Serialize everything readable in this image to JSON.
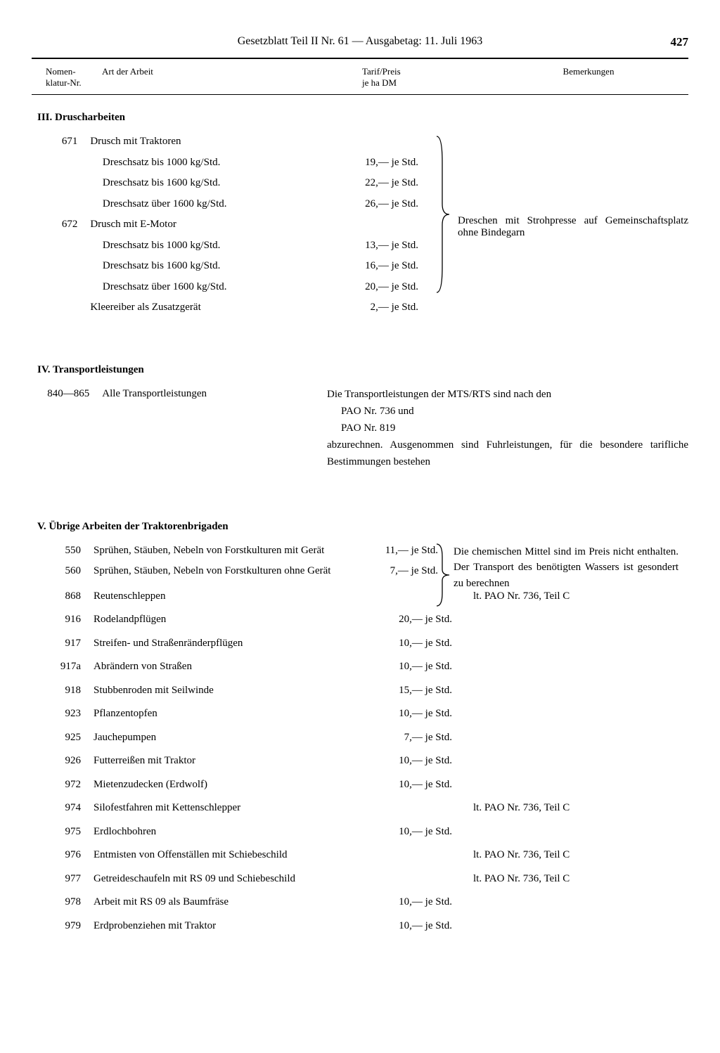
{
  "header": {
    "title_left": "Gesetzblatt Teil II Nr. 61",
    "separator": "—",
    "title_right": "Ausgabetag: 11. Juli 1963",
    "page_number": "427"
  },
  "columns": {
    "nr_line1": "Nomen-",
    "nr_line2": "klatur-Nr.",
    "art": "Art der Arbeit",
    "tarif_line1": "Tarif/Preis",
    "tarif_line2": "je ha DM",
    "bem": "Bemerkungen"
  },
  "section3": {
    "title": "III. Druscharbeiten",
    "item_671_nr": "671",
    "item_671_art": "Drusch mit Traktoren",
    "item_671_sub": [
      {
        "art": "Dreschsatz   bis 1000 kg/Std.",
        "tarif": "19,— je Std."
      },
      {
        "art": "Dreschsatz   bis 1600 kg/Std.",
        "tarif": "22,— je Std."
      },
      {
        "art": "Dreschsatz über 1600 kg/Std.",
        "tarif": "26,— je Std."
      }
    ],
    "item_672_nr": "672",
    "item_672_art": "Drusch mit E-Motor",
    "item_672_sub": [
      {
        "art": "Dreschsatz   bis 1000 kg/Std.",
        "tarif": "13,— je Std."
      },
      {
        "art": "Dreschsatz   bis 1600 kg/Std.",
        "tarif": "16,— je Std."
      },
      {
        "art": "Dreschsatz über 1600 kg/Std.",
        "tarif": "20,— je Std."
      },
      {
        "art": "Kleereiber als Zusatzgerät",
        "tarif": "2,— je Std."
      }
    ],
    "remark": "Dreschen mit Strohpresse auf Gemeinschaftsplatz ohne Binde­garn"
  },
  "section4": {
    "title": "IV. Transportleistungen",
    "item_nr": "840—865",
    "item_art": "Alle Transportleistungen",
    "remark_line1": "Die Transportleistungen der MTS/RTS sind nach den",
    "remark_line2": "PAO Nr. 736 und",
    "remark_line3": "PAO Nr. 819",
    "remark_line4": "abzurechnen. Ausgenommen sind Fuhrleistungen, für die besondere tarifliche Bestimmungen bestehen"
  },
  "section5": {
    "title": "V. Übrige Arbeiten der Traktorenbrigaden",
    "bracket_items": [
      {
        "nr": "550",
        "art": "Sprühen, Stäuben, Nebeln von Forstkulturen mit Gerät",
        "tarif": "11,— je Std."
      },
      {
        "nr": "560",
        "art": "Sprühen, Stäuben, Nebeln von Forstkulturen ohne Gerät",
        "tarif": "7,— je Std."
      }
    ],
    "bracket_remark": "Die chemischen Mittel sind im Preis nicht enthalten. Der Trans­port des benötigten Wassers ist gesondert zu berechnen",
    "rows": [
      {
        "nr": "868",
        "art": "Reutenschleppen",
        "tarif": "",
        "bem": "lt. PAO Nr. 736, Teil C"
      },
      {
        "nr": "916",
        "art": "Rodelandpflügen",
        "tarif": "20,— je Std.",
        "bem": ""
      },
      {
        "nr": "917",
        "art": "Streifen- und Straßenränderpflügen",
        "tarif": "10,— je Std.",
        "bem": ""
      },
      {
        "nr": "917a",
        "art": "Abrändern von Straßen",
        "tarif": "10,— je Std.",
        "bem": ""
      },
      {
        "nr": "918",
        "art": "Stubbenroden mit Seilwinde",
        "tarif": "15,— je Std.",
        "bem": ""
      },
      {
        "nr": "923",
        "art": "Pflanzentopfen",
        "tarif": "10,— je Std.",
        "bem": ""
      },
      {
        "nr": "925",
        "art": "Jauchepumpen",
        "tarif": "7,— je Std.",
        "bem": ""
      },
      {
        "nr": "926",
        "art": "Futterreißen mit Traktor",
        "tarif": "10,— je Std.",
        "bem": ""
      },
      {
        "nr": "972",
        "art": "Mietenzudecken (Erdwolf)",
        "tarif": "10,— je Std.",
        "bem": ""
      },
      {
        "nr": "974",
        "art": "Silofestfahren mit Kettenschlepper",
        "tarif": "",
        "bem": "lt. PAO Nr. 736, Teil C"
      },
      {
        "nr": "975",
        "art": "Erdlochbohren",
        "tarif": "10,— je Std.",
        "bem": ""
      },
      {
        "nr": "976",
        "art": "Entmisten von Offenställen mit Schiebeschild",
        "tarif": "",
        "bem": "lt. PAO Nr. 736, Teil C"
      },
      {
        "nr": "977",
        "art": "Getreideschaufeln mit RS 09 und Schiebeschild",
        "tarif": "",
        "bem": "lt. PAO Nr. 736, Teil C"
      },
      {
        "nr": "978",
        "art": "Arbeit mit RS 09 als Baumfräse",
        "tarif": "10,— je Std.",
        "bem": ""
      },
      {
        "nr": "979",
        "art": "Erdprobenziehen mit Traktor",
        "tarif": "10,— je Std.",
        "bem": ""
      }
    ]
  }
}
